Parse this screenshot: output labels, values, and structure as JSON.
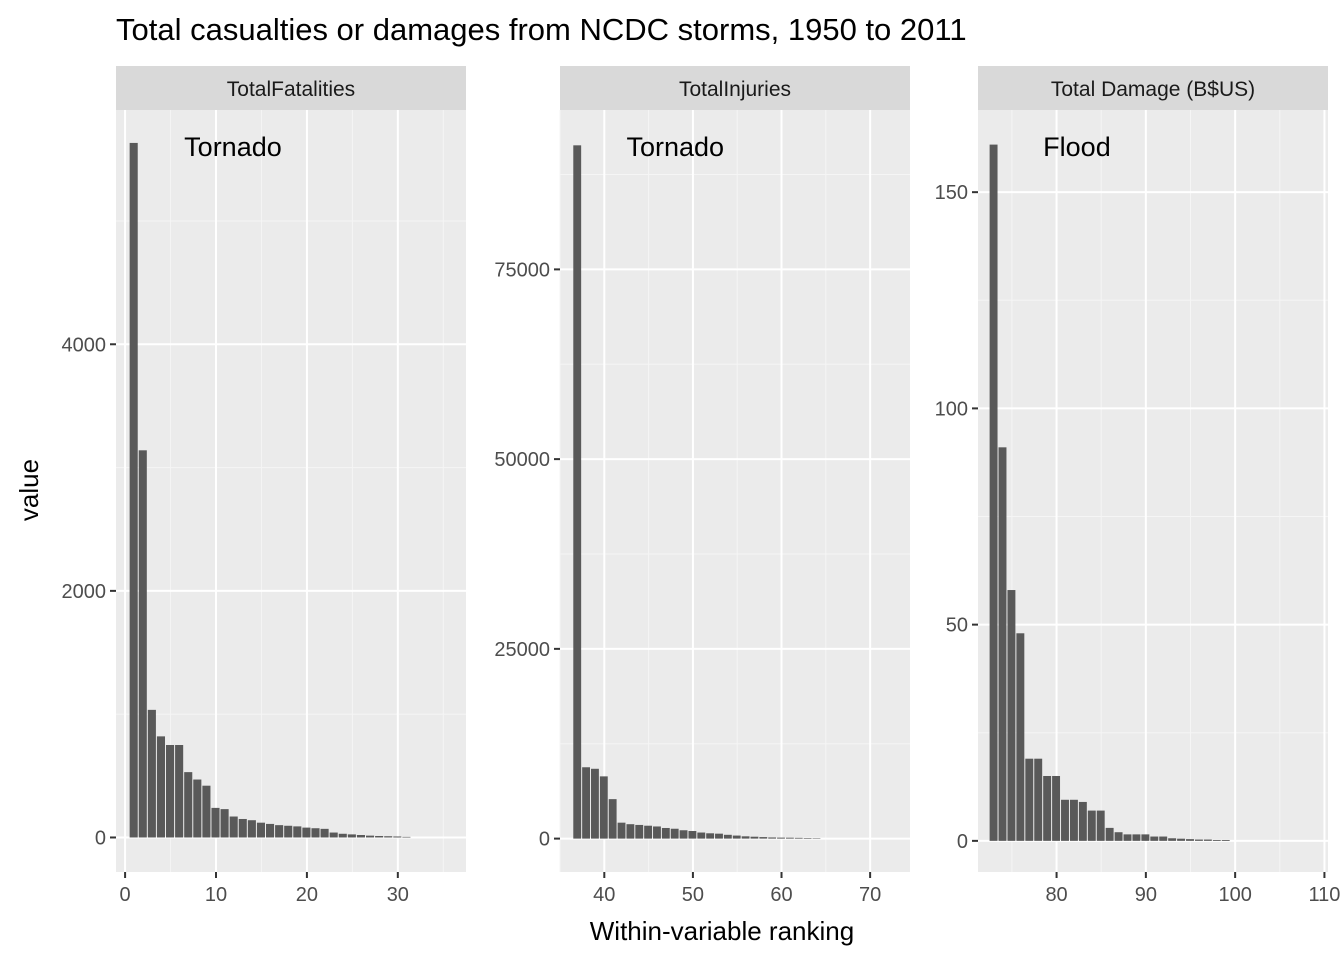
{
  "chart_data": {
    "type": "bar",
    "title": "Total casualties or damages from NCDC storms, 1950 to 2011",
    "xlabel": "Within-variable ranking",
    "ylabel": "value",
    "grid": true,
    "bar_color": "#595959",
    "panel_background": "#ebebeb",
    "strip_background": "#d9d9d9",
    "panels": [
      {
        "strip": "TotalFatalities",
        "annotation": "Tornado",
        "xlim": [
          -1,
          37.5
        ],
        "ylim": [
          -280,
          5900
        ],
        "x_ticks": [
          0,
          10,
          20,
          30
        ],
        "y_ticks": [
          0,
          2000,
          4000
        ],
        "x_start": 1,
        "values": [
          5633,
          3140,
          1035,
          820,
          750,
          750,
          530,
          470,
          420,
          240,
          230,
          170,
          150,
          140,
          120,
          110,
          100,
          95,
          90,
          80,
          75,
          70,
          40,
          30,
          25,
          20,
          15,
          12,
          10,
          8,
          5
        ]
      },
      {
        "strip": "TotalInjuries",
        "annotation": "Tornado",
        "xlim": [
          35,
          74.5
        ],
        "ylim": [
          -4400,
          96000
        ],
        "x_ticks": [
          40,
          50,
          60,
          70
        ],
        "y_ticks": [
          0,
          25000,
          50000,
          75000
        ],
        "x_start": 37,
        "values": [
          91346,
          9400,
          9200,
          8200,
          5200,
          2100,
          1900,
          1800,
          1700,
          1600,
          1400,
          1300,
          1100,
          1000,
          800,
          700,
          650,
          500,
          400,
          300,
          250,
          200,
          150,
          130,
          120,
          100,
          80,
          60
        ]
      },
      {
        "strip": "Total Damage (B$US)",
        "annotation": "Flood",
        "xlim": [
          71.2,
          110.4
        ],
        "ylim": [
          -7.2,
          169
        ],
        "x_ticks": [
          80,
          90,
          100,
          110
        ],
        "y_ticks": [
          0,
          50,
          100,
          150
        ],
        "x_start": 73,
        "values": [
          161,
          91,
          58,
          48,
          19,
          19,
          15,
          15,
          9.5,
          9.5,
          9,
          7,
          7,
          3,
          2,
          1.5,
          1.5,
          1.5,
          1,
          1,
          0.6,
          0.5,
          0.4,
          0.3,
          0.3,
          0.2,
          0.2
        ]
      }
    ]
  }
}
